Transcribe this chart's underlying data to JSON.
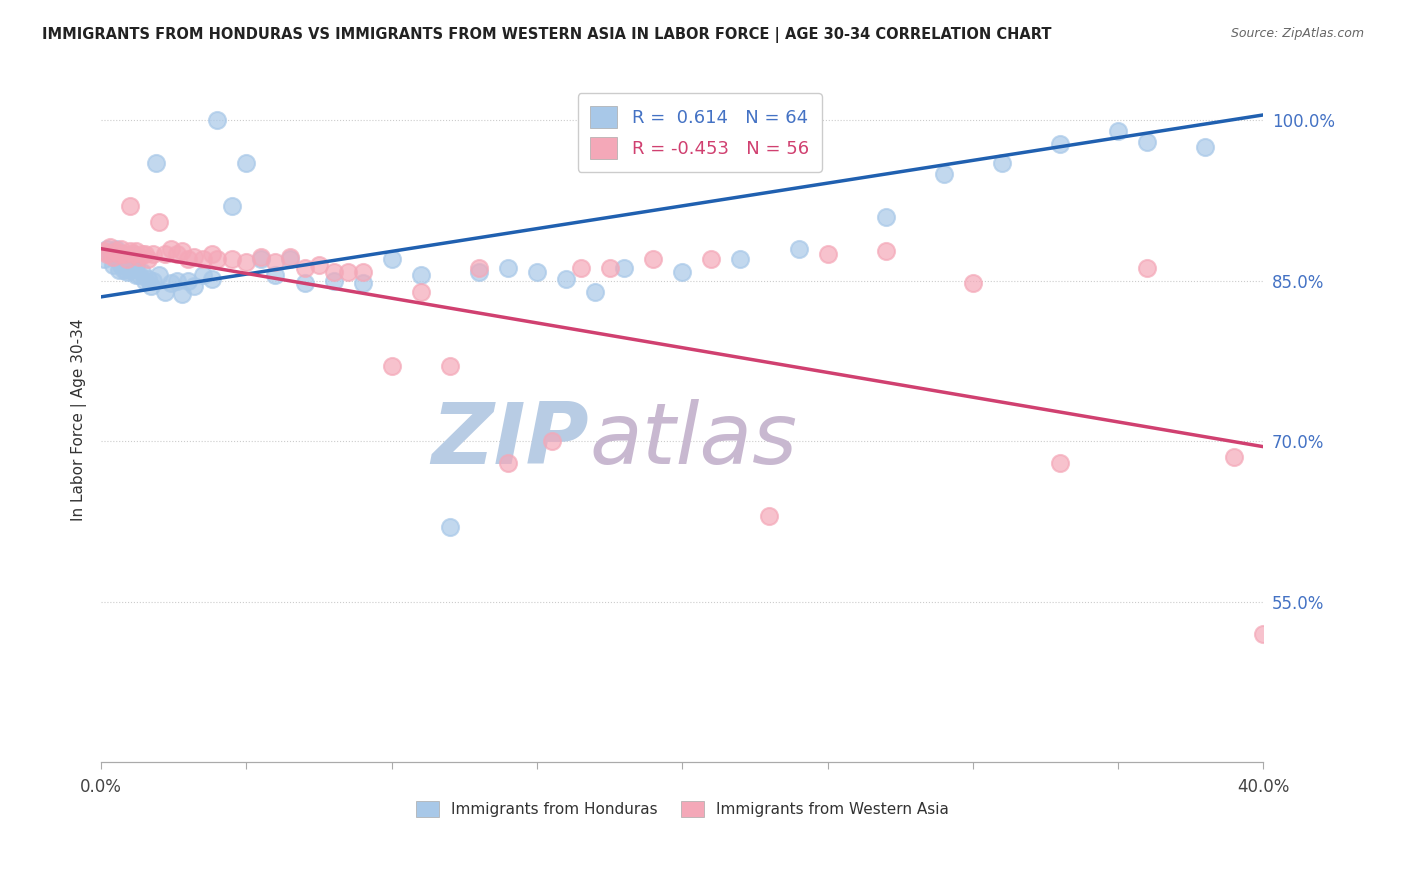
{
  "title": "IMMIGRANTS FROM HONDURAS VS IMMIGRANTS FROM WESTERN ASIA IN LABOR FORCE | AGE 30-34 CORRELATION CHART",
  "source": "Source: ZipAtlas.com",
  "ylabel": "In Labor Force | Age 30-34",
  "xlim": [
    0.0,
    0.4
  ],
  "ylim": [
    0.4,
    1.04
  ],
  "xticks": [
    0.0,
    0.05,
    0.1,
    0.15,
    0.2,
    0.25,
    0.3,
    0.35,
    0.4
  ],
  "xticklabels": [
    "0.0%",
    "",
    "",
    "",
    "",
    "",
    "",
    "",
    "40.0%"
  ],
  "ytick_positions": [
    0.55,
    0.7,
    0.85,
    1.0
  ],
  "ytick_labels": [
    "55.0%",
    "70.0%",
    "85.0%",
    "100.0%"
  ],
  "R_blue": 0.614,
  "N_blue": 64,
  "R_pink": -0.453,
  "N_pink": 56,
  "blue_color": "#a8c8e8",
  "pink_color": "#f4a8b8",
  "blue_line_color": "#2060b0",
  "pink_line_color": "#d04070",
  "watermark_zip": "ZIP",
  "watermark_atlas": "atlas",
  "watermark_color_zip": "#b8cce4",
  "watermark_color_atlas": "#c8b8d0",
  "blue_scatter_x": [
    0.001,
    0.002,
    0.003,
    0.004,
    0.005,
    0.005,
    0.006,
    0.006,
    0.007,
    0.007,
    0.008,
    0.008,
    0.009,
    0.009,
    0.01,
    0.01,
    0.011,
    0.011,
    0.012,
    0.012,
    0.013,
    0.014,
    0.015,
    0.016,
    0.017,
    0.018,
    0.019,
    0.02,
    0.022,
    0.024,
    0.026,
    0.028,
    0.03,
    0.032,
    0.035,
    0.038,
    0.04,
    0.045,
    0.05,
    0.055,
    0.06,
    0.065,
    0.07,
    0.08,
    0.09,
    0.1,
    0.11,
    0.12,
    0.13,
    0.14,
    0.15,
    0.16,
    0.17,
    0.18,
    0.2,
    0.22,
    0.24,
    0.27,
    0.29,
    0.31,
    0.33,
    0.35,
    0.36,
    0.38
  ],
  "blue_scatter_y": [
    0.87,
    0.88,
    0.875,
    0.865,
    0.87,
    0.88,
    0.875,
    0.86,
    0.865,
    0.875,
    0.86,
    0.87,
    0.858,
    0.865,
    0.86,
    0.87,
    0.862,
    0.875,
    0.855,
    0.865,
    0.855,
    0.858,
    0.85,
    0.852,
    0.845,
    0.85,
    0.96,
    0.855,
    0.84,
    0.848,
    0.85,
    0.838,
    0.85,
    0.845,
    0.855,
    0.852,
    1.0,
    0.92,
    0.96,
    0.87,
    0.855,
    0.87,
    0.848,
    0.85,
    0.848,
    0.87,
    0.855,
    0.62,
    0.858,
    0.862,
    0.858,
    0.852,
    0.84,
    0.862,
    0.858,
    0.87,
    0.88,
    0.91,
    0.95,
    0.96,
    0.978,
    0.99,
    0.98,
    0.975
  ],
  "pink_scatter_x": [
    0.001,
    0.002,
    0.003,
    0.004,
    0.005,
    0.006,
    0.007,
    0.008,
    0.009,
    0.01,
    0.01,
    0.011,
    0.012,
    0.013,
    0.014,
    0.015,
    0.016,
    0.018,
    0.02,
    0.022,
    0.024,
    0.026,
    0.028,
    0.03,
    0.032,
    0.035,
    0.038,
    0.04,
    0.045,
    0.05,
    0.055,
    0.06,
    0.065,
    0.07,
    0.075,
    0.08,
    0.085,
    0.09,
    0.1,
    0.11,
    0.12,
    0.13,
    0.14,
    0.155,
    0.165,
    0.175,
    0.19,
    0.21,
    0.23,
    0.25,
    0.27,
    0.3,
    0.33,
    0.36,
    0.39,
    0.4
  ],
  "pink_scatter_y": [
    0.878,
    0.875,
    0.882,
    0.872,
    0.878,
    0.875,
    0.88,
    0.875,
    0.87,
    0.878,
    0.92,
    0.875,
    0.878,
    0.872,
    0.875,
    0.875,
    0.87,
    0.875,
    0.905,
    0.875,
    0.88,
    0.875,
    0.878,
    0.87,
    0.872,
    0.87,
    0.875,
    0.87,
    0.87,
    0.868,
    0.872,
    0.868,
    0.872,
    0.862,
    0.865,
    0.858,
    0.858,
    0.858,
    0.77,
    0.84,
    0.77,
    0.862,
    0.68,
    0.7,
    0.862,
    0.862,
    0.87,
    0.87,
    0.63,
    0.875,
    0.878,
    0.848,
    0.68,
    0.862,
    0.685,
    0.52
  ]
}
